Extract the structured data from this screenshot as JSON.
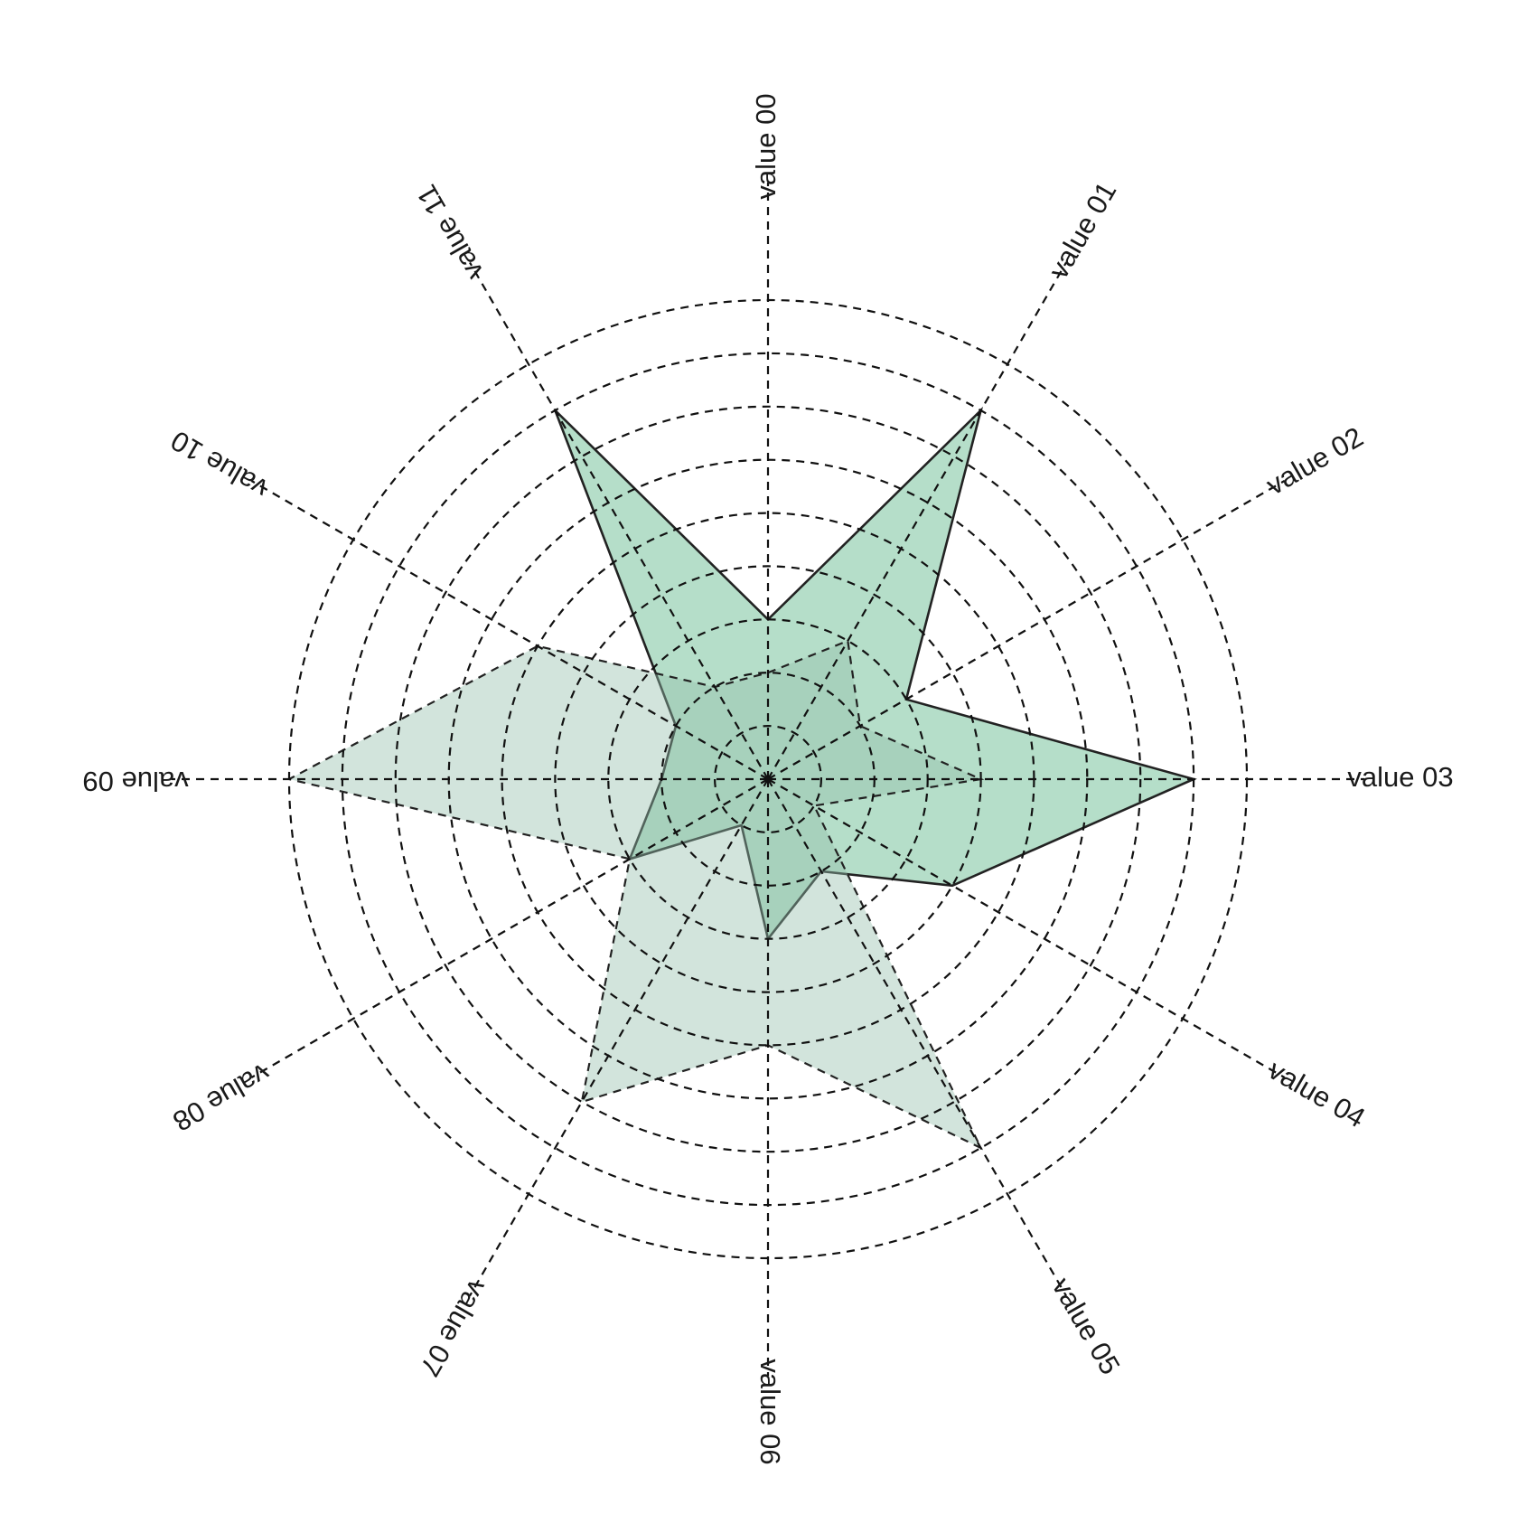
{
  "chart_data": {
    "type": "radar",
    "categories": [
      "value 00",
      "value 01",
      "value 02",
      "value 03",
      "value 04",
      "value 05",
      "value 06",
      "value 07",
      "value 08",
      "value 09",
      "value 10",
      "value 11"
    ],
    "rlim": [
      0,
      9
    ],
    "rings": 9,
    "grid": true,
    "series": [
      {
        "values": [
          3.0,
          8.0,
          3.0,
          8.0,
          4.0,
          2.0,
          3.0,
          1.0,
          3.0,
          2.0,
          2.0,
          8.0
        ],
        "fill": "#a8d8c0",
        "fill_opacity": 0.85,
        "stroke": "#222222",
        "stroke_style": "solid"
      },
      {
        "values": [
          2.0,
          3.0,
          2.0,
          4.0,
          1.0,
          8.0,
          5.0,
          7.0,
          3.0,
          9.0,
          5.0,
          2.0
        ],
        "fill": "#93bfab",
        "fill_opacity": 0.42,
        "stroke": "#222222",
        "stroke_style": "dashed"
      }
    ]
  }
}
